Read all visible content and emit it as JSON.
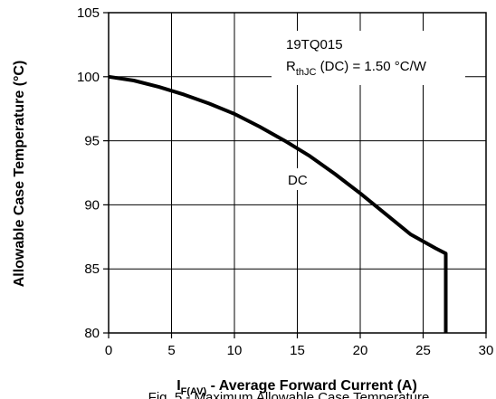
{
  "chart_data": {
    "type": "line",
    "title": "",
    "xlabel": {
      "main": "I",
      "subscript": "F(AV)",
      "rest": " - Average Forward Current (A)"
    },
    "ylabel": "Allowable Case Temperature (°C)",
    "xlim": [
      0,
      30
    ],
    "ylim": [
      80,
      105
    ],
    "xticks": [
      0,
      5,
      10,
      15,
      20,
      25,
      30
    ],
    "yticks": [
      80,
      85,
      90,
      95,
      100,
      105
    ],
    "grid": true,
    "legend": "none",
    "series": [
      {
        "name": "DC",
        "color": "#000000",
        "x": [
          0,
          2,
          4,
          6,
          8,
          10,
          12,
          14,
          16,
          18,
          20,
          22,
          24,
          26,
          26.8,
          26.8
        ],
        "y": [
          100,
          99.7,
          99.2,
          98.6,
          97.9,
          97.1,
          96.1,
          95.0,
          93.8,
          92.4,
          90.9,
          89.3,
          87.7,
          86.6,
          86.2,
          80
        ]
      }
    ],
    "annotations": {
      "device": "19TQ015",
      "rth_main": "R",
      "rth_sub": "thJC",
      "rth_rest": " (DC) = 1.50 °C/W",
      "curve_label": "DC"
    },
    "caption": "Fig. 5 - Maximum Allowable Case Temperature"
  }
}
